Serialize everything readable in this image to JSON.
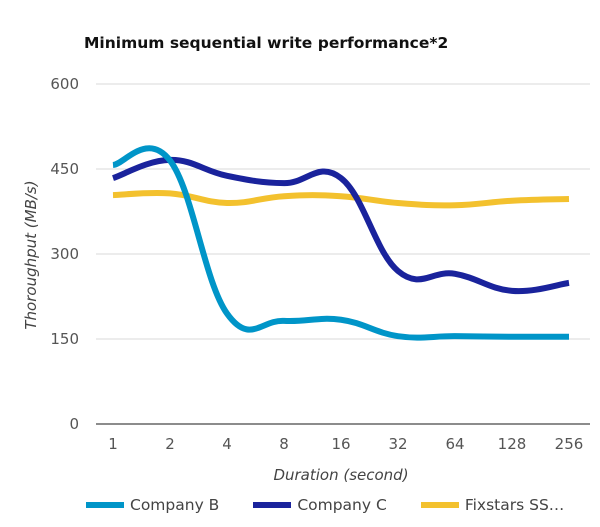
{
  "chart_data": {
    "type": "line",
    "title": "Minimum sequential write performance*2",
    "xlabel": "Duration (second)",
    "ylabel": "Thoroughput (MB/s)",
    "categories": [
      "1",
      "2",
      "4",
      "8",
      "16",
      "32",
      "64",
      "128",
      "256"
    ],
    "ylim": [
      0,
      600
    ],
    "yticks": [
      "0",
      "150",
      "300",
      "450",
      "600"
    ],
    "grid": true,
    "legend_position": "bottom",
    "series": [
      {
        "name": "Company B",
        "color": "#0095c8",
        "values": [
          457,
          465,
          195,
          182,
          184,
          155,
          155,
          154,
          154
        ]
      },
      {
        "name": "Company C",
        "color": "#1a239c",
        "values": [
          434,
          466,
          438,
          425,
          434,
          270,
          265,
          235,
          249
        ]
      },
      {
        "name": "Fixstars SS…",
        "color": "#f3c12e",
        "values": [
          404,
          407,
          390,
          402,
          402,
          390,
          386,
          394,
          397
        ]
      }
    ]
  }
}
